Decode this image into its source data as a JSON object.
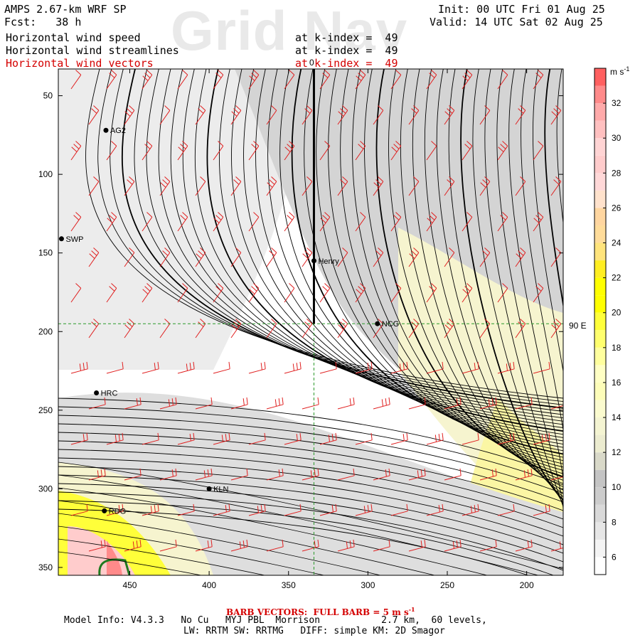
{
  "header": {
    "model": "AMPS 2.67-km WRF SP",
    "fcst_label": "Fcst:",
    "fcst_value": "38 h",
    "init": "Init: 00 UTC Fri 01 Aug 25",
    "valid": "Valid: 14 UTC Sat 02 Aug 25",
    "fields": [
      {
        "name": "Horizontal wind speed",
        "level": "at k-index =  49",
        "color": "#000000"
      },
      {
        "name": "Horizontal wind streamlines",
        "level": "at k-index =  49",
        "color": "#000000"
      },
      {
        "name": "Horizontal wind vectors",
        "level": "at k-index =  49",
        "color": "#d40000"
      }
    ]
  },
  "watermark": "Grid Nav",
  "meridian_label": "90 E",
  "meridian_marker": "0",
  "footer": {
    "barb_note": "BARB VECTORS:  FULL BARB = 5 m s",
    "barb_unit_sup": "-1",
    "model_info": "Model Info: V4.3.3   No Cu   MYJ PBL  Morrison           2.7 km,  60 levels,",
    "physics": "LW: RRTM SW: RRTMG   DIFF: simple KM: 2D Smagor"
  },
  "colorbar": {
    "unit": "m s",
    "unit_sup": "-1",
    "labels": [
      "6",
      "8",
      "10",
      "12",
      "14",
      "16",
      "18",
      "20",
      "22",
      "24",
      "26",
      "28",
      "30",
      "32"
    ],
    "bins": [
      {
        "from": 5,
        "to": 6,
        "color": "#ffffff"
      },
      {
        "from": 6,
        "to": 7,
        "color": "#f4f4f4"
      },
      {
        "from": 7,
        "to": 8,
        "color": "#e6e6e6"
      },
      {
        "from": 8,
        "to": 9,
        "color": "#d9d9d9"
      },
      {
        "from": 9,
        "to": 10,
        "color": "#cccccc"
      },
      {
        "from": 10,
        "to": 11,
        "color": "#c4c4c4"
      },
      {
        "from": 11,
        "to": 12,
        "color": "#d9d9c9"
      },
      {
        "from": 12,
        "to": 13,
        "color": "#ececd0"
      },
      {
        "from": 13,
        "to": 14,
        "color": "#f4f4d2"
      },
      {
        "from": 14,
        "to": 15,
        "color": "#fbfbcf"
      },
      {
        "from": 15,
        "to": 16,
        "color": "#fdfdb9"
      },
      {
        "from": 16,
        "to": 17,
        "color": "#ffffc4"
      },
      {
        "from": 17,
        "to": 18,
        "color": "#ffff9e"
      },
      {
        "from": 18,
        "to": 19,
        "color": "#ffff6e"
      },
      {
        "from": 19,
        "to": 20,
        "color": "#ffff3a"
      },
      {
        "from": 20,
        "to": 21,
        "color": "#ffff00"
      },
      {
        "from": 21,
        "to": 22,
        "color": "#ffff00"
      },
      {
        "from": 22,
        "to": 23,
        "color": "#ffee22"
      },
      {
        "from": 23,
        "to": 24,
        "color": "#ffe47c"
      },
      {
        "from": 24,
        "to": 25,
        "color": "#ffdc9a"
      },
      {
        "from": 25,
        "to": 26,
        "color": "#ffd6a0"
      },
      {
        "from": 26,
        "to": 27,
        "color": "#ffe2cc"
      },
      {
        "from": 27,
        "to": 28,
        "color": "#ffd8d8"
      },
      {
        "from": 28,
        "to": 29,
        "color": "#ffcccc"
      },
      {
        "from": 29,
        "to": 30,
        "color": "#ffd4d4"
      },
      {
        "from": 30,
        "to": 31,
        "color": "#ffc0c0"
      },
      {
        "from": 31,
        "to": 32,
        "color": "#ffaaaa"
      },
      {
        "from": 32,
        "to": 33,
        "color": "#ff8a8a"
      },
      {
        "from": 33,
        "to": 34,
        "color": "#ff6060"
      }
    ]
  },
  "chart_data": {
    "type": "heatmap",
    "title": "Horizontal wind speed / streamlines / vectors at k-index 49",
    "xlabel": "",
    "ylabel": "",
    "xlim": [
      495,
      177
    ],
    "ylim": [
      355,
      33
    ],
    "x_ticks": [
      450,
      400,
      350,
      300,
      250,
      200
    ],
    "y_ticks": [
      50,
      100,
      150,
      200,
      250,
      300,
      350
    ],
    "reference_lines": {
      "x": 334,
      "y": 195
    },
    "stations": [
      {
        "name": "AG2",
        "x": 465,
        "y": 72
      },
      {
        "name": "SWP",
        "x": 493,
        "y": 141
      },
      {
        "name": "Henry",
        "x": 334,
        "y": 155
      },
      {
        "name": "NCG",
        "x": 294,
        "y": 195
      },
      {
        "name": "HRC",
        "x": 471,
        "y": 239
      },
      {
        "name": "KLN",
        "x": 400,
        "y": 300
      },
      {
        "name": "RDG",
        "x": 466,
        "y": 314
      }
    ]
  },
  "colors": {
    "barb": "#e02020",
    "gridline": "#2a9a2a",
    "coast": "#1f7a1f"
  }
}
